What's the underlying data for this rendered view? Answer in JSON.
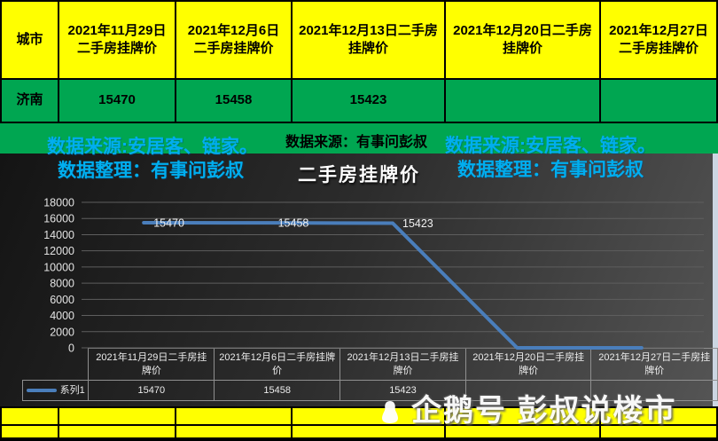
{
  "top_table": {
    "corner_label": "城市",
    "headers": [
      {
        "l1": "2021年11月29日",
        "l2": "二手房挂牌价"
      },
      {
        "l1": "2021年12月6日",
        "l2": "二手房挂牌价"
      },
      {
        "l1": "2021年12月13日二手房",
        "l2": "挂牌价"
      },
      {
        "l1": "2021年12月20日二手房",
        "l2": "挂牌价"
      },
      {
        "l1": "2021年12月27日",
        "l2": "二手房挂牌价"
      }
    ],
    "row": {
      "city": "济南",
      "values": [
        "15470",
        "15458",
        "15423",
        "",
        ""
      ]
    }
  },
  "watermarks": {
    "left_source": "数据来源:安居客、链家。",
    "left_credit": "数据整理：有事问彭叔",
    "center_source": "数据来源：有事问彭叔",
    "right_source": "数据来源:安居客、链家。",
    "right_credit": "数据整理：有事问彭叔"
  },
  "chart_data": {
    "type": "line",
    "title": "二手房挂牌价",
    "categories": [
      "2021年11月29日二手房挂牌价",
      "2021年12月6日二手房挂牌价",
      "2021年12月13日二手房挂牌价",
      "2021年12月20日二手房挂牌价",
      "2021年12月27日二手房挂牌价"
    ],
    "series": [
      {
        "name": "系列1",
        "values": [
          15470,
          15458,
          15423,
          null,
          null
        ]
      }
    ],
    "plotted_values": [
      15470,
      15458,
      15423,
      0,
      0
    ],
    "point_labels": [
      "15470",
      "15458",
      "15423",
      null,
      null
    ],
    "table_values": [
      "15470",
      "15458",
      "15423",
      "",
      ""
    ],
    "ylim": [
      0,
      18000
    ],
    "ytick_interval": 2000,
    "grid": true,
    "legend_position": "table-left",
    "line_color": "#4a7ebb",
    "colors": {
      "header_bg": "#ffff00",
      "row_bg": "#00a651",
      "watermark_blue": "#00aeef",
      "chart_bg_dark": "#2d2d2d"
    }
  },
  "footer": {
    "channel_text": "企鹅号 彭叔说楼市",
    "icon": "qq-penguin-icon"
  }
}
